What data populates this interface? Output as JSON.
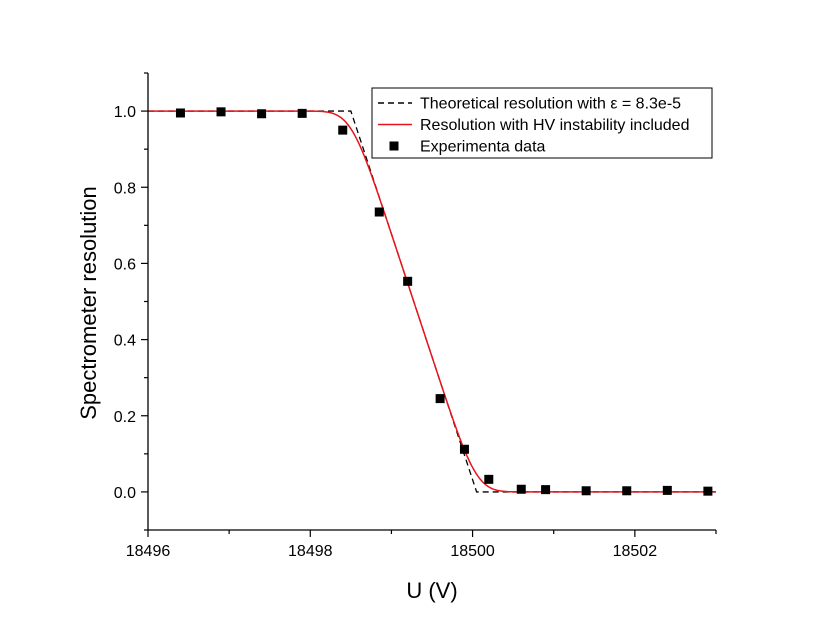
{
  "chart_data": {
    "type": "line",
    "title": "",
    "xlabel": "U (V)",
    "ylabel": "Spectrometer resolution",
    "xlim": [
      18496,
      18503
    ],
    "ylim": [
      -0.1,
      1.1
    ],
    "x_ticks": [
      18496,
      18498,
      18500,
      18502
    ],
    "x_tick_labels": [
      "18496",
      "18498",
      "18500",
      "18502"
    ],
    "x_minor_step": 1,
    "y_ticks": [
      0.0,
      0.2,
      0.4,
      0.6,
      0.8,
      1.0
    ],
    "y_tick_labels": [
      "0.0",
      "0.2",
      "0.4",
      "0.6",
      "0.8",
      "1.0"
    ],
    "y_minor_step": 0.1,
    "grid": false,
    "legend_position": "top-right",
    "series": [
      {
        "name": "Theoretical resolution with ε = 8.3e-5",
        "kind": "line",
        "color": "#000000",
        "dash": true,
        "x": [
          18496,
          18498.5,
          18500.05,
          18503
        ],
        "y": [
          1.0,
          1.0,
          0.0,
          0.0
        ]
      },
      {
        "name": "Resolution with HV instability included",
        "kind": "smooth_step",
        "color": "#e8141b",
        "dash": false,
        "x_range": [
          18496,
          18503
        ],
        "ramp_start": 18498.5,
        "ramp_end": 18500.05,
        "sigma": 0.18
      },
      {
        "name": "Experimenta data",
        "kind": "scatter",
        "color": "#000000",
        "marker": "square",
        "x": [
          18496.4,
          18496.9,
          18497.4,
          18497.9,
          18498.4,
          18498.85,
          18499.2,
          18499.6,
          18499.9,
          18500.2,
          18500.6,
          18500.9,
          18501.4,
          18501.9,
          18502.4,
          18502.9
        ],
        "y": [
          0.995,
          0.998,
          0.993,
          0.994,
          0.95,
          0.735,
          0.553,
          0.245,
          0.112,
          0.033,
          0.007,
          0.006,
          0.003,
          0.003,
          0.004,
          0.002
        ]
      }
    ]
  }
}
